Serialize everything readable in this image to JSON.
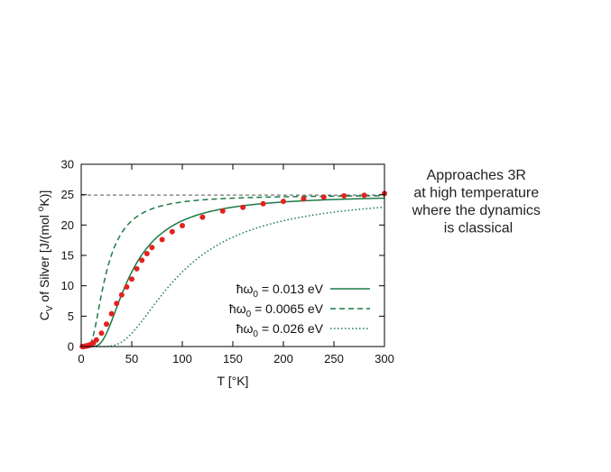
{
  "chart_data": {
    "type": "line",
    "xlabel": "T [°K]",
    "ylabel": "C_V of Silver [J/(mol °K)]",
    "xlim": [
      0,
      300
    ],
    "ylim": [
      0,
      30
    ],
    "xticks": [
      0,
      50,
      100,
      150,
      200,
      250,
      300
    ],
    "yticks": [
      0,
      5,
      10,
      15,
      20,
      25,
      30
    ],
    "grid": false,
    "legend_position": "lower-right",
    "colors": {
      "curve": "#1b7a47",
      "data": "#e3221f",
      "reference": "#555555"
    },
    "reference_line": {
      "y": 24.94
    },
    "series": [
      {
        "name": "ħω₀ = 0.013 eV",
        "kind": "einstein",
        "theta_E": 150.9,
        "style": "solid"
      },
      {
        "name": "ħω₀ = 0.0065 eV",
        "kind": "einstein",
        "theta_E": 75.4,
        "style": "dashed"
      },
      {
        "name": "ħω₀ = 0.026 eV",
        "kind": "einstein",
        "theta_E": 301.7,
        "style": "dotted"
      }
    ],
    "points": {
      "x": [
        1,
        2,
        3,
        4,
        5,
        6,
        7,
        8,
        10,
        12,
        15,
        20,
        25,
        30,
        35,
        40,
        45,
        50,
        55,
        60,
        65,
        70,
        80,
        90,
        100,
        120,
        140,
        160,
        180,
        200,
        220,
        240,
        260,
        280,
        300
      ],
      "y": [
        0.0,
        0.0,
        0.0,
        0.1,
        0.1,
        0.1,
        0.2,
        0.2,
        0.4,
        0.6,
        1.1,
        2.2,
        3.7,
        5.4,
        7.1,
        8.5,
        9.8,
        11.1,
        12.8,
        14.2,
        15.3,
        16.3,
        17.6,
        18.9,
        19.9,
        21.3,
        22.3,
        22.9,
        23.5,
        23.9,
        24.3,
        24.6,
        24.8,
        24.9,
        25.2
      ]
    }
  },
  "annotation": {
    "lines": [
      "Approaches 3R",
      "at high temperature",
      "where the dynamics",
      "is classical"
    ]
  }
}
